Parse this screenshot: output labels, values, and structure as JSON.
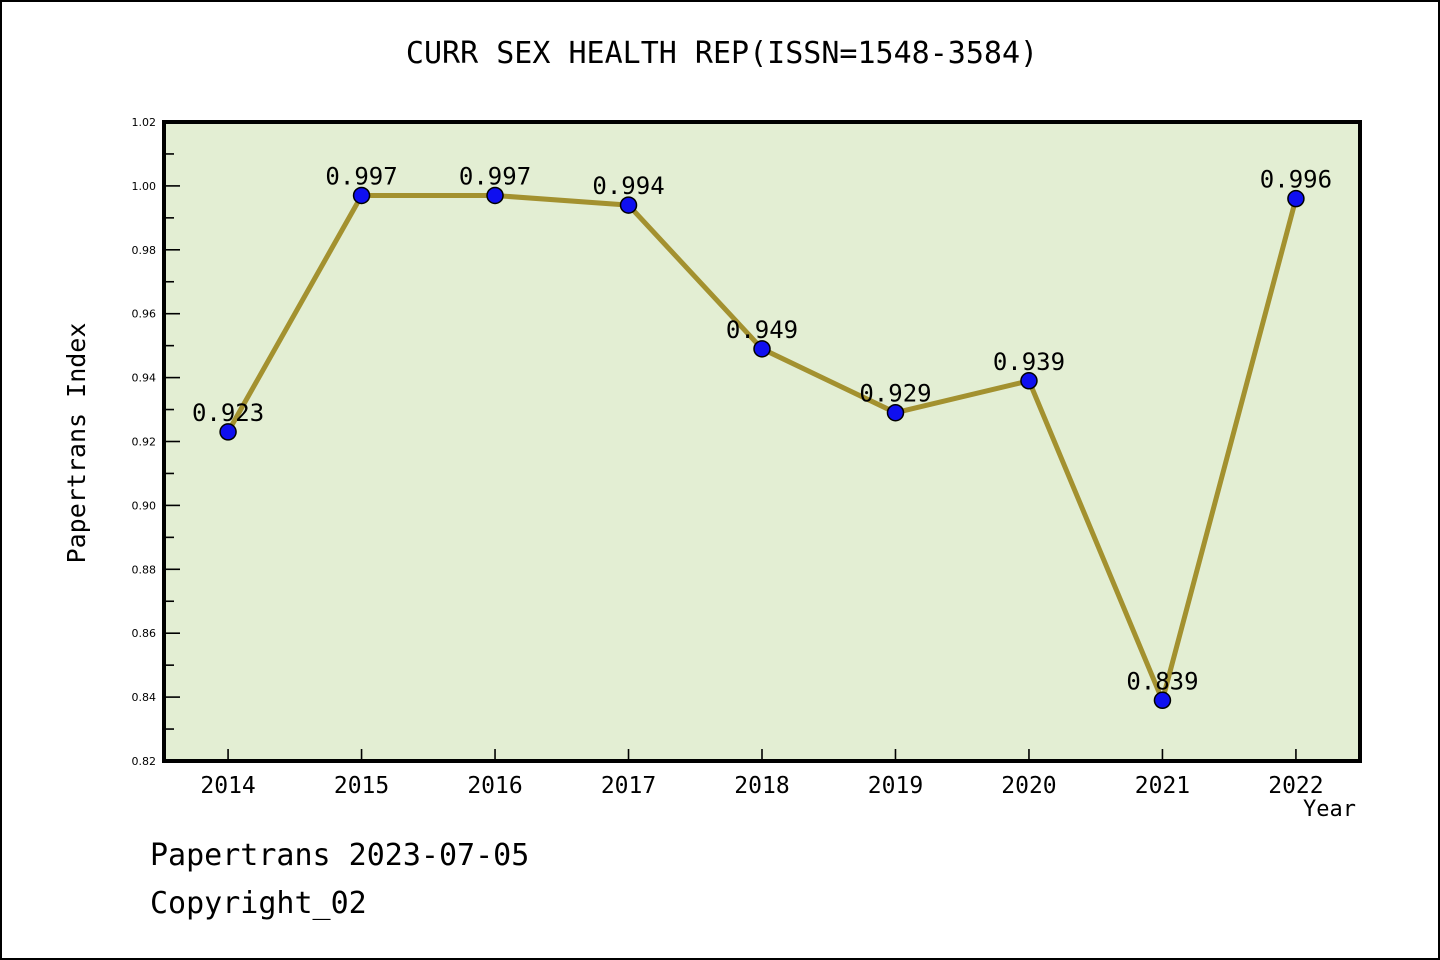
{
  "page": {
    "background": "#ffffff",
    "frame_border_color": "#000000"
  },
  "chart_data": {
    "type": "line",
    "title": "CURR SEX HEALTH REP(ISSN=1548-3584)",
    "xlabel": "Year",
    "ylabel": "Papertrans Index",
    "categories": [
      "2014",
      "2015",
      "2016",
      "2017",
      "2018",
      "2019",
      "2020",
      "2021",
      "2022"
    ],
    "series": [
      {
        "name": "Papertrans Index",
        "values": [
          0.923,
          0.997,
          0.997,
          0.994,
          0.949,
          0.929,
          0.939,
          0.839,
          0.996
        ]
      }
    ],
    "point_labels": [
      "0.923",
      "0.997",
      "0.997",
      "0.994",
      "0.949",
      "0.929",
      "0.939",
      "0.839",
      "0.996"
    ],
    "ylim": [
      0.82,
      1.02
    ],
    "ytick_step": 0.02,
    "ytick_minor_step": 0.01,
    "grid": false,
    "legend_position": "none",
    "style": {
      "plot_background": "#e3eed3",
      "line_color": "#a3912f",
      "marker_color": "#0f0ff0",
      "marker_edge_color": "#000000",
      "axis_color": "#000000",
      "text_color": "#000000"
    }
  },
  "footer": {
    "line1": "Papertrans 2023-07-05",
    "line2": "Copyright_02"
  }
}
